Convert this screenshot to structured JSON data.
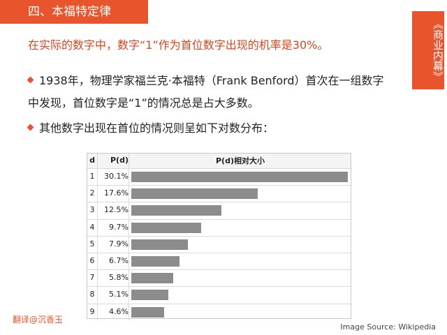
{
  "slide": {
    "section_title": "四、本福特定律",
    "side_tag": "《商业内幕》",
    "lead_text": "在实际的数字中，数字“1”作为首位数字出现的机率是30%。",
    "bullet_1": "1938年，物理学家福兰克·本福特（Frank Benford）首次在一组数字中发现，首位数字是“1”的情况总是占大多数。",
    "bullet_2": "其他数字出现在首位的情况则呈如下对数分布：",
    "translator": "翻译@沉香玉",
    "source": "Image Source: Wikipedia"
  },
  "table": {
    "headers": {
      "d": "d",
      "p": "P(d)",
      "bar": "P(d)相对大小"
    },
    "rows": [
      {
        "d": "1",
        "p": "30.1%",
        "value": 30.1
      },
      {
        "d": "2",
        "p": "17.6%",
        "value": 17.6
      },
      {
        "d": "3",
        "p": "12.5%",
        "value": 12.5
      },
      {
        "d": "4",
        "p": "9.7%",
        "value": 9.7
      },
      {
        "d": "5",
        "p": "7.9%",
        "value": 7.9
      },
      {
        "d": "6",
        "p": "6.7%",
        "value": 6.7
      },
      {
        "d": "7",
        "p": "5.8%",
        "value": 5.8
      },
      {
        "d": "8",
        "p": "5.1%",
        "value": 5.1
      },
      {
        "d": "9",
        "p": "4.6%",
        "value": 4.6
      }
    ]
  },
  "colors": {
    "accent": "#e8552c",
    "bar": "#8c8c8c"
  }
}
